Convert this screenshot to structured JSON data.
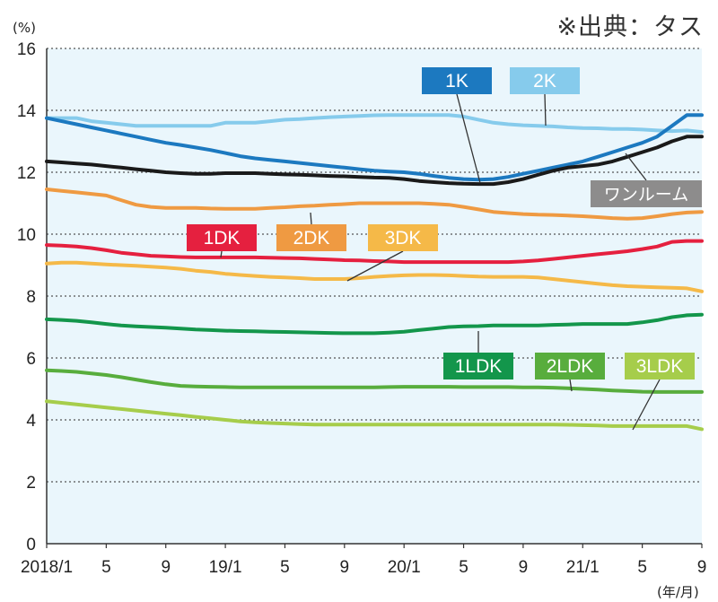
{
  "source_note": "※出典：タス",
  "chart_data": {
    "type": "line",
    "y_unit_label": "(%)",
    "x_unit_label": "(年/月)",
    "ylim": [
      0,
      16
    ],
    "yticks": [
      "0",
      "2",
      "4",
      "6",
      "8",
      "10",
      "12",
      "14",
      "16"
    ],
    "x_months": 45,
    "xticks": [
      {
        "m": 0,
        "label": "2018/1"
      },
      {
        "m": 4,
        "label": "5"
      },
      {
        "m": 8,
        "label": "9"
      },
      {
        "m": 12,
        "label": "19/1"
      },
      {
        "m": 16,
        "label": "5"
      },
      {
        "m": 20,
        "label": "9"
      },
      {
        "m": 24,
        "label": "20/1"
      },
      {
        "m": 28,
        "label": "5"
      },
      {
        "m": 32,
        "label": "9"
      },
      {
        "m": 36,
        "label": "21/1"
      },
      {
        "m": 40,
        "label": "5"
      },
      {
        "m": 44,
        "label": "9"
      }
    ],
    "grid": true,
    "series": [
      {
        "name": "2K",
        "color": "#86cbec",
        "values": [
          13.75,
          13.75,
          13.75,
          13.65,
          13.6,
          13.55,
          13.5,
          13.5,
          13.5,
          13.5,
          13.5,
          13.5,
          13.6,
          13.6,
          13.6,
          13.65,
          13.7,
          13.72,
          13.75,
          13.78,
          13.8,
          13.82,
          13.84,
          13.85,
          13.85,
          13.85,
          13.85,
          13.85,
          13.8,
          13.7,
          13.6,
          13.55,
          13.52,
          13.5,
          13.48,
          13.45,
          13.43,
          13.42,
          13.4,
          13.4,
          13.38,
          13.35,
          13.33,
          13.35,
          13.3
        ]
      },
      {
        "name": "1K",
        "color": "#1c79c0",
        "values": [
          13.75,
          13.65,
          13.55,
          13.45,
          13.35,
          13.25,
          13.15,
          13.05,
          12.95,
          12.88,
          12.8,
          12.72,
          12.62,
          12.52,
          12.45,
          12.4,
          12.35,
          12.3,
          12.25,
          12.2,
          12.15,
          12.1,
          12.05,
          12.02,
          12.0,
          11.95,
          11.88,
          11.82,
          11.78,
          11.76,
          11.78,
          11.85,
          11.95,
          12.05,
          12.15,
          12.25,
          12.35,
          12.5,
          12.65,
          12.8,
          12.95,
          13.15,
          13.5,
          13.85,
          13.85
        ]
      },
      {
        "name": "ワンルーム",
        "color": "#1a1a1a",
        "values": [
          12.35,
          12.32,
          12.28,
          12.25,
          12.2,
          12.15,
          12.1,
          12.05,
          12.0,
          11.97,
          11.95,
          11.95,
          11.97,
          11.97,
          11.97,
          11.95,
          11.93,
          11.92,
          11.9,
          11.88,
          11.87,
          11.85,
          11.83,
          11.82,
          11.78,
          11.72,
          11.68,
          11.65,
          11.63,
          11.62,
          11.62,
          11.68,
          11.78,
          11.92,
          12.05,
          12.15,
          12.2,
          12.25,
          12.35,
          12.5,
          12.65,
          12.8,
          13.0,
          13.15,
          13.15
        ]
      },
      {
        "name": "2DK",
        "color": "#ef9a42",
        "values": [
          11.45,
          11.4,
          11.35,
          11.3,
          11.25,
          11.1,
          10.95,
          10.88,
          10.85,
          10.85,
          10.85,
          10.83,
          10.82,
          10.82,
          10.82,
          10.85,
          10.87,
          10.9,
          10.92,
          10.95,
          10.97,
          11.0,
          11.0,
          11.0,
          11.0,
          11.0,
          10.98,
          10.95,
          10.88,
          10.8,
          10.72,
          10.68,
          10.65,
          10.63,
          10.62,
          10.6,
          10.58,
          10.55,
          10.52,
          10.5,
          10.52,
          10.58,
          10.65,
          10.7,
          10.72
        ]
      },
      {
        "name": "1DK",
        "color": "#e5203f",
        "values": [
          9.65,
          9.63,
          9.6,
          9.55,
          9.48,
          9.4,
          9.35,
          9.3,
          9.28,
          9.26,
          9.25,
          9.25,
          9.25,
          9.25,
          9.25,
          9.24,
          9.23,
          9.22,
          9.2,
          9.18,
          9.16,
          9.15,
          9.13,
          9.12,
          9.1,
          9.1,
          9.1,
          9.1,
          9.1,
          9.1,
          9.1,
          9.1,
          9.12,
          9.15,
          9.2,
          9.25,
          9.3,
          9.35,
          9.4,
          9.45,
          9.52,
          9.6,
          9.75,
          9.78,
          9.78
        ]
      },
      {
        "name": "3DK",
        "color": "#f5b948",
        "values": [
          9.05,
          9.08,
          9.08,
          9.05,
          9.02,
          9.0,
          8.98,
          8.95,
          8.92,
          8.88,
          8.82,
          8.78,
          8.72,
          8.68,
          8.65,
          8.62,
          8.6,
          8.58,
          8.55,
          8.55,
          8.55,
          8.58,
          8.62,
          8.65,
          8.67,
          8.68,
          8.68,
          8.67,
          8.65,
          8.63,
          8.62,
          8.62,
          8.62,
          8.6,
          8.55,
          8.5,
          8.45,
          8.4,
          8.35,
          8.32,
          8.3,
          8.28,
          8.27,
          8.25,
          8.15
        ]
      },
      {
        "name": "1LDK",
        "color": "#13964b",
        "values": [
          7.25,
          7.23,
          7.2,
          7.15,
          7.1,
          7.05,
          7.02,
          7.0,
          6.98,
          6.95,
          6.92,
          6.9,
          6.88,
          6.87,
          6.86,
          6.85,
          6.84,
          6.83,
          6.82,
          6.81,
          6.8,
          6.8,
          6.8,
          6.82,
          6.85,
          6.9,
          6.95,
          7.0,
          7.02,
          7.03,
          7.05,
          7.05,
          7.05,
          7.05,
          7.07,
          7.08,
          7.1,
          7.1,
          7.1,
          7.1,
          7.15,
          7.22,
          7.32,
          7.38,
          7.4
        ]
      },
      {
        "name": "2LDK",
        "color": "#58ad3d",
        "values": [
          5.6,
          5.58,
          5.55,
          5.5,
          5.45,
          5.38,
          5.3,
          5.22,
          5.15,
          5.1,
          5.08,
          5.07,
          5.06,
          5.05,
          5.05,
          5.05,
          5.05,
          5.05,
          5.05,
          5.05,
          5.05,
          5.05,
          5.05,
          5.06,
          5.07,
          5.07,
          5.07,
          5.07,
          5.06,
          5.06,
          5.06,
          5.06,
          5.05,
          5.05,
          5.04,
          5.02,
          5.0,
          4.98,
          4.95,
          4.93,
          4.91,
          4.9,
          4.9,
          4.9,
          4.9
        ]
      },
      {
        "name": "3LDK",
        "color": "#a6cd4b",
        "values": [
          4.6,
          4.55,
          4.5,
          4.45,
          4.4,
          4.35,
          4.3,
          4.25,
          4.2,
          4.15,
          4.1,
          4.05,
          4.0,
          3.95,
          3.92,
          3.9,
          3.88,
          3.86,
          3.85,
          3.85,
          3.85,
          3.85,
          3.85,
          3.85,
          3.85,
          3.85,
          3.85,
          3.85,
          3.85,
          3.85,
          3.85,
          3.85,
          3.85,
          3.85,
          3.85,
          3.84,
          3.83,
          3.82,
          3.8,
          3.8,
          3.8,
          3.8,
          3.8,
          3.8,
          3.7
        ]
      }
    ]
  }
}
